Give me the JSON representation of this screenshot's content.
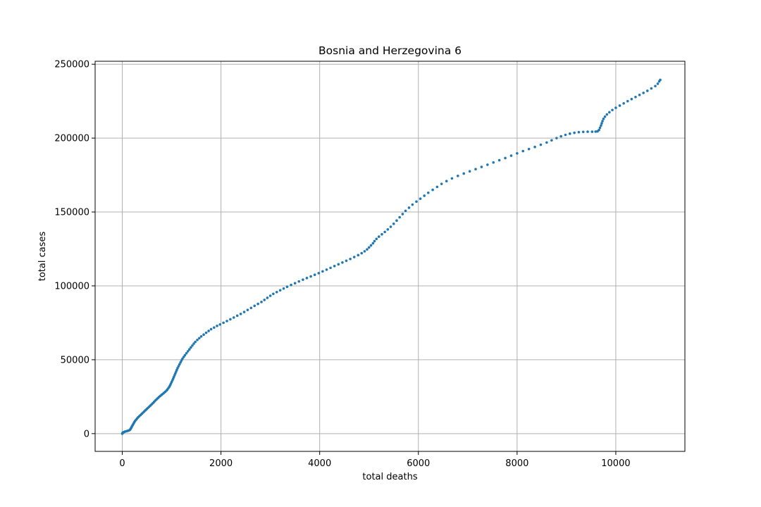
{
  "chart_data": {
    "type": "scatter",
    "title": "Bosnia and Herzegovina 6",
    "xlabel": "total deaths",
    "ylabel": "total cases",
    "xlim": [
      -550,
      11400
    ],
    "ylim": [
      -12000,
      252000
    ],
    "xticks": [
      0,
      2000,
      4000,
      6000,
      8000,
      10000
    ],
    "yticks": [
      0,
      50000,
      100000,
      150000,
      200000,
      250000
    ],
    "grid": true,
    "marker_color": "#1f77b4",
    "series": [
      {
        "points": [
          [
            0,
            0
          ],
          [
            5,
            400
          ],
          [
            15,
            700
          ],
          [
            30,
            1000
          ],
          [
            50,
            1300
          ],
          [
            70,
            1500
          ],
          [
            90,
            1700
          ],
          [
            110,
            1900
          ],
          [
            130,
            2100
          ],
          [
            150,
            2400
          ],
          [
            160,
            2800
          ],
          [
            170,
            3300
          ],
          [
            180,
            3900
          ],
          [
            190,
            4500
          ],
          [
            200,
            5200
          ],
          [
            215,
            6000
          ],
          [
            230,
            6900
          ],
          [
            245,
            7800
          ],
          [
            260,
            8600
          ],
          [
            280,
            9400
          ],
          [
            300,
            10200
          ],
          [
            320,
            11000
          ],
          [
            345,
            11800
          ],
          [
            370,
            12600
          ],
          [
            395,
            13400
          ],
          [
            420,
            14200
          ],
          [
            445,
            15000
          ],
          [
            470,
            15800
          ],
          [
            495,
            16600
          ],
          [
            520,
            17400
          ],
          [
            545,
            18200
          ],
          [
            570,
            19000
          ],
          [
            595,
            19800
          ],
          [
            620,
            20600
          ],
          [
            645,
            21500
          ],
          [
            670,
            22400
          ],
          [
            695,
            23200
          ],
          [
            720,
            24000
          ],
          [
            745,
            24800
          ],
          [
            770,
            25500
          ],
          [
            795,
            26200
          ],
          [
            820,
            26900
          ],
          [
            845,
            27600
          ],
          [
            870,
            28300
          ],
          [
            895,
            29100
          ],
          [
            915,
            29900
          ],
          [
            935,
            30800
          ],
          [
            955,
            31800
          ],
          [
            970,
            32800
          ],
          [
            985,
            33800
          ],
          [
            1000,
            34900
          ],
          [
            1015,
            36000
          ],
          [
            1030,
            37100
          ],
          [
            1045,
            38300
          ],
          [
            1060,
            39500
          ],
          [
            1075,
            40700
          ],
          [
            1090,
            41900
          ],
          [
            1105,
            43100
          ],
          [
            1120,
            44300
          ],
          [
            1140,
            45600
          ],
          [
            1160,
            46900
          ],
          [
            1180,
            48200
          ],
          [
            1200,
            49500
          ],
          [
            1220,
            50700
          ],
          [
            1245,
            51900
          ],
          [
            1270,
            53100
          ],
          [
            1300,
            54400
          ],
          [
            1330,
            55700
          ],
          [
            1360,
            57000
          ],
          [
            1390,
            58300
          ],
          [
            1420,
            59600
          ],
          [
            1450,
            60900
          ],
          [
            1480,
            62100
          ],
          [
            1520,
            63400
          ],
          [
            1560,
            64600
          ],
          [
            1600,
            65800
          ],
          [
            1650,
            67000
          ],
          [
            1700,
            68300
          ],
          [
            1750,
            69500
          ],
          [
            1800,
            70700
          ],
          [
            1860,
            71800
          ],
          [
            1920,
            72900
          ],
          [
            1980,
            73900
          ],
          [
            2050,
            75000
          ],
          [
            2120,
            76200
          ],
          [
            2190,
            77400
          ],
          [
            2260,
            78600
          ],
          [
            2330,
            79800
          ],
          [
            2400,
            81000
          ],
          [
            2470,
            82300
          ],
          [
            2540,
            83700
          ],
          [
            2610,
            85100
          ],
          [
            2680,
            86500
          ],
          [
            2750,
            87800
          ],
          [
            2820,
            89100
          ],
          [
            2880,
            90500
          ],
          [
            2940,
            91900
          ],
          [
            3000,
            93300
          ],
          [
            3060,
            94600
          ],
          [
            3130,
            95800
          ],
          [
            3200,
            97000
          ],
          [
            3270,
            98200
          ],
          [
            3340,
            99400
          ],
          [
            3420,
            100600
          ],
          [
            3500,
            101800
          ],
          [
            3580,
            103000
          ],
          [
            3660,
            104200
          ],
          [
            3740,
            105300
          ],
          [
            3820,
            106400
          ],
          [
            3900,
            107500
          ],
          [
            3980,
            108600
          ],
          [
            4060,
            109800
          ],
          [
            4140,
            111000
          ],
          [
            4220,
            112200
          ],
          [
            4300,
            113400
          ],
          [
            4380,
            114600
          ],
          [
            4460,
            115800
          ],
          [
            4540,
            117000
          ],
          [
            4620,
            118200
          ],
          [
            4700,
            119500
          ],
          [
            4780,
            120800
          ],
          [
            4850,
            122100
          ],
          [
            4910,
            123400
          ],
          [
            4960,
            124700
          ],
          [
            5000,
            126000
          ],
          [
            5040,
            127400
          ],
          [
            5080,
            128800
          ],
          [
            5110,
            130300
          ],
          [
            5150,
            131800
          ],
          [
            5200,
            133300
          ],
          [
            5260,
            134900
          ],
          [
            5320,
            136500
          ],
          [
            5380,
            138200
          ],
          [
            5440,
            140000
          ],
          [
            5500,
            142000
          ],
          [
            5560,
            144200
          ],
          [
            5620,
            146400
          ],
          [
            5680,
            148600
          ],
          [
            5740,
            150800
          ],
          [
            5810,
            152900
          ],
          [
            5880,
            155000
          ],
          [
            5960,
            157000
          ],
          [
            6040,
            159000
          ],
          [
            6120,
            161000
          ],
          [
            6200,
            163000
          ],
          [
            6290,
            165000
          ],
          [
            6380,
            167000
          ],
          [
            6470,
            169000
          ],
          [
            6570,
            170900
          ],
          [
            6680,
            172700
          ],
          [
            6800,
            174400
          ],
          [
            6920,
            176000
          ],
          [
            7040,
            177500
          ],
          [
            7160,
            179000
          ],
          [
            7280,
            180500
          ],
          [
            7400,
            182000
          ],
          [
            7520,
            183500
          ],
          [
            7640,
            185000
          ],
          [
            7760,
            186500
          ],
          [
            7880,
            188100
          ],
          [
            8000,
            189700
          ],
          [
            8120,
            191200
          ],
          [
            8240,
            192600
          ],
          [
            8360,
            194000
          ],
          [
            8480,
            195500
          ],
          [
            8600,
            197000
          ],
          [
            8700,
            198500
          ],
          [
            8800,
            200000
          ],
          [
            8890,
            201200
          ],
          [
            8980,
            202200
          ],
          [
            9070,
            203000
          ],
          [
            9160,
            203600
          ],
          [
            9250,
            204000
          ],
          [
            9340,
            204200
          ],
          [
            9430,
            204300
          ],
          [
            9520,
            204300
          ],
          [
            9590,
            204400
          ],
          [
            9630,
            204600
          ],
          [
            9660,
            205500
          ],
          [
            9680,
            207000
          ],
          [
            9700,
            208500
          ],
          [
            9715,
            210000
          ],
          [
            9730,
            211500
          ],
          [
            9750,
            213000
          ],
          [
            9780,
            214500
          ],
          [
            9820,
            216000
          ],
          [
            9870,
            217500
          ],
          [
            9930,
            219000
          ],
          [
            10000,
            220500
          ],
          [
            10080,
            222000
          ],
          [
            10160,
            223500
          ],
          [
            10240,
            225000
          ],
          [
            10320,
            226400
          ],
          [
            10400,
            227800
          ],
          [
            10480,
            229200
          ],
          [
            10560,
            230600
          ],
          [
            10640,
            232000
          ],
          [
            10720,
            233600
          ],
          [
            10800,
            235200
          ],
          [
            10850,
            236800
          ],
          [
            10880,
            238400
          ],
          [
            10900,
            239400
          ]
        ]
      }
    ]
  }
}
